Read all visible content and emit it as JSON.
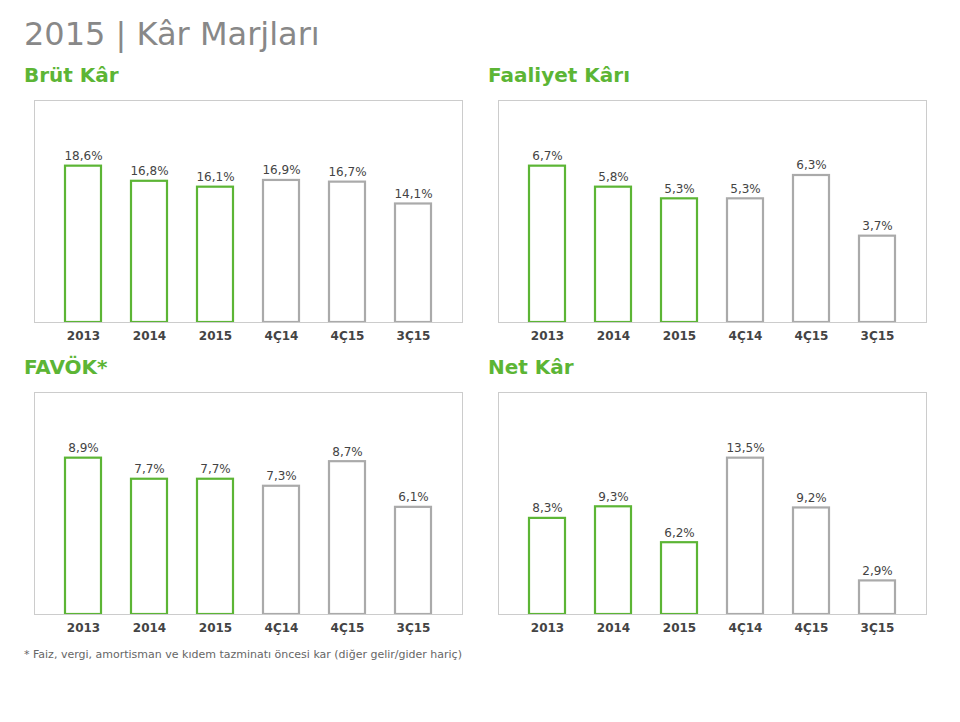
{
  "title": "2015 | Kâr Marjları",
  "annotations": [
    "* Faiz, vergi, amortisman ve kıdem tazminatı öncesi kar (diğer gelir/gider hariç)"
  ],
  "chart_data": [
    {
      "type": "bar",
      "title": "Brüt Kâr",
      "categories": [
        "2013",
        "2014",
        "2015",
        "4Ç14",
        "4Ç15",
        "3Ç15"
      ],
      "values": [
        18.6,
        16.8,
        16.1,
        16.9,
        16.7,
        14.1
      ],
      "value_labels": [
        "18,6%",
        "16,8%",
        "16,1%",
        "16,9%",
        "16,7%",
        "14,1%"
      ],
      "colors": [
        "#5cb535",
        "#5cb535",
        "#5cb535",
        "#aaaaaa",
        "#aaaaaa",
        "#aaaaaa"
      ],
      "ylim": [
        0,
        26.412
      ],
      "grid": false,
      "data_labels": true,
      "tick_labels": "x"
    },
    {
      "type": "bar",
      "title": "Faaliyet Kârı",
      "categories": [
        "2013",
        "2014",
        "2015",
        "4Ç14",
        "4Ç15",
        "3Ç15"
      ],
      "values": [
        6.7,
        5.8,
        5.3,
        5.3,
        6.3,
        3.7
      ],
      "value_labels": [
        "6,7%",
        "5,8%",
        "5,3%",
        "5,3%",
        "6,3%",
        "3,7%"
      ],
      "colors": [
        "#5cb535",
        "#5cb535",
        "#5cb535",
        "#aaaaaa",
        "#aaaaaa",
        "#aaaaaa"
      ],
      "ylim": [
        0,
        9.514
      ],
      "grid": false,
      "data_labels": true,
      "tick_labels": "x"
    },
    {
      "type": "bar",
      "title": "FAVÖK*",
      "categories": [
        "2013",
        "2014",
        "2015",
        "4Ç14",
        "4Ç15",
        "3Ç15"
      ],
      "values": [
        8.9,
        7.7,
        7.7,
        7.3,
        8.7,
        6.1
      ],
      "value_labels": [
        "8,9%",
        "7,7%",
        "7,7%",
        "7,3%",
        "8,7%",
        "6,1%"
      ],
      "colors": [
        "#5cb535",
        "#5cb535",
        "#5cb535",
        "#aaaaaa",
        "#aaaaaa",
        "#aaaaaa"
      ],
      "ylim": [
        0,
        12.638
      ],
      "grid": false,
      "data_labels": true,
      "tick_labels": "x"
    },
    {
      "type": "bar",
      "title": "Net Kâr",
      "categories": [
        "2013",
        "2014",
        "2015",
        "4Ç14",
        "4Ç15",
        "3Ç15"
      ],
      "values": [
        8.3,
        9.3,
        6.2,
        13.5,
        9.2,
        2.9
      ],
      "value_labels": [
        "8,3%",
        "9,3%",
        "6,2%",
        "13,5%",
        "9,2%",
        "2,9%"
      ],
      "colors": [
        "#5cb535",
        "#5cb535",
        "#5cb535",
        "#aaaaaa",
        "#aaaaaa",
        "#aaaaaa"
      ],
      "ylim": [
        0,
        19.17
      ],
      "grid": false,
      "data_labels": true,
      "tick_labels": "x"
    }
  ]
}
